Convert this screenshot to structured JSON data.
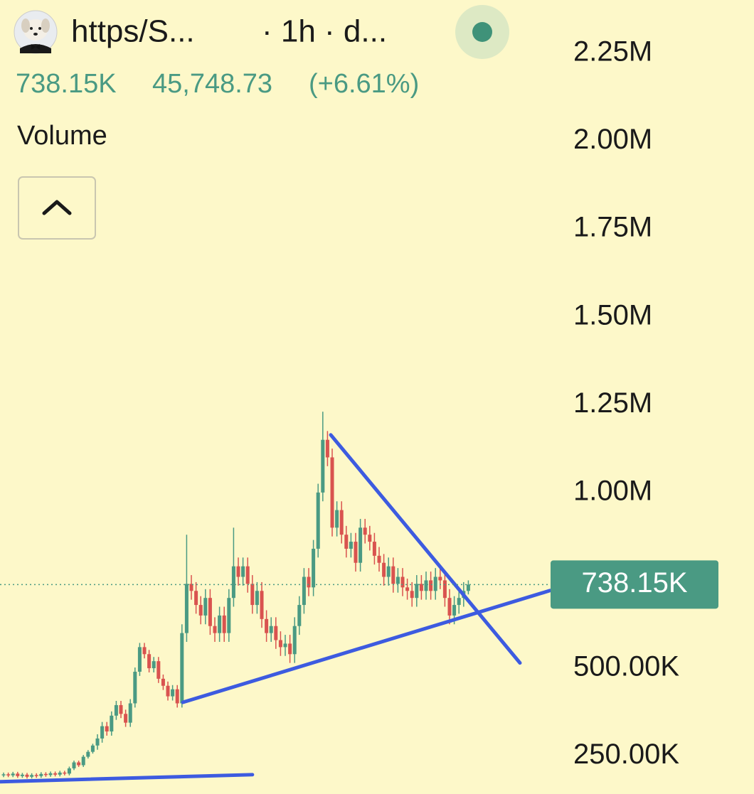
{
  "chart_data": {
    "type": "candlestick",
    "symbol": "https/S...",
    "interval": "· 1h · d...",
    "indicator": "Volume",
    "change": {
      "value": 45748.73,
      "label": "45,748.73"
    },
    "change_pct": {
      "value": 6.61,
      "label": "(+6.61%)"
    },
    "last_price": {
      "value": 738150,
      "label": "738.15K"
    },
    "up_color": "#4a9a83",
    "down_color": "#d9534f",
    "xlim": [
      -0.76,
      159.85
    ],
    "ylim": [
      142000,
      2401700
    ],
    "yticks": [
      {
        "value": 250000,
        "label": "250.00K"
      },
      {
        "value": 500000,
        "label": "500.00K"
      },
      {
        "value": 1000000,
        "label": "1.00M"
      },
      {
        "value": 1250000,
        "label": "1.25M"
      },
      {
        "value": 1500000,
        "label": "1.50M"
      },
      {
        "value": 1750000,
        "label": "1.75M"
      },
      {
        "value": 2000000,
        "label": "2.00M"
      },
      {
        "value": 2250000,
        "label": "2.25M"
      }
    ],
    "open": [
      195000,
      198000,
      195000,
      200000,
      193000,
      197000,
      191000,
      196000,
      193000,
      199000,
      196000,
      201000,
      197000,
      203000,
      200000,
      215000,
      232000,
      224000,
      248000,
      262000,
      280000,
      300000,
      335000,
      320000,
      365000,
      395000,
      370000,
      345000,
      400000,
      490000,
      560000,
      540000,
      500000,
      520000,
      470000,
      450000,
      420000,
      440000,
      400000,
      600000,
      740000,
      720000,
      680000,
      650000,
      700000,
      620000,
      600000,
      650000,
      600000,
      700000,
      790000,
      760000,
      790000,
      740000,
      680000,
      720000,
      640000,
      600000,
      620000,
      580000,
      560000,
      570000,
      540000,
      620000,
      680000,
      760000,
      730000,
      840000,
      1000000,
      1150000,
      1100000,
      900000,
      950000,
      880000,
      840000,
      860000,
      800000,
      900000,
      880000,
      860000,
      820000,
      800000,
      760000,
      790000,
      740000,
      760000,
      730000,
      720000,
      700000,
      740000,
      720000,
      750000,
      720000,
      760000,
      750000,
      700000,
      650000,
      680000,
      700000,
      720000
    ],
    "high": [
      203000,
      203000,
      205000,
      205000,
      202000,
      202000,
      201000,
      201000,
      204000,
      204000,
      206000,
      206000,
      208000,
      208000,
      220000,
      237000,
      237000,
      253000,
      267000,
      285000,
      312000,
      347000,
      347000,
      377000,
      407000,
      407000,
      382000,
      412000,
      502000,
      572000,
      572000,
      552000,
      532000,
      532000,
      482000,
      462000,
      452000,
      452000,
      625000,
      880000,
      765000,
      745000,
      705000,
      725000,
      725000,
      645000,
      675000,
      675000,
      725000,
      900000,
      815000,
      815000,
      815000,
      765000,
      745000,
      745000,
      665000,
      645000,
      645000,
      605000,
      595000,
      595000,
      645000,
      705000,
      785000,
      785000,
      865000,
      1025000,
      1230000,
      1175000,
      1125000,
      975000,
      975000,
      905000,
      885000,
      885000,
      925000,
      925000,
      905000,
      885000,
      845000,
      825000,
      815000,
      815000,
      785000,
      785000,
      755000,
      745000,
      765000,
      765000,
      775000,
      775000,
      785000,
      785000,
      775000,
      725000,
      705000,
      725000,
      745000,
      750000
    ],
    "low": [
      190000,
      190000,
      190000,
      188000,
      188000,
      186000,
      186000,
      188000,
      188000,
      191000,
      191000,
      192000,
      192000,
      195000,
      195000,
      210000,
      219000,
      219000,
      243000,
      257000,
      268000,
      288000,
      308000,
      308000,
      353000,
      358000,
      333000,
      333000,
      388000,
      478000,
      528000,
      488000,
      488000,
      458000,
      438000,
      408000,
      408000,
      388000,
      388000,
      575000,
      695000,
      655000,
      625000,
      625000,
      595000,
      575000,
      575000,
      575000,
      575000,
      675000,
      735000,
      735000,
      715000,
      655000,
      655000,
      615000,
      575000,
      575000,
      555000,
      535000,
      535000,
      515000,
      515000,
      595000,
      655000,
      705000,
      705000,
      815000,
      975000,
      1075000,
      875000,
      875000,
      855000,
      815000,
      815000,
      775000,
      775000,
      855000,
      835000,
      795000,
      775000,
      735000,
      735000,
      715000,
      715000,
      705000,
      695000,
      675000,
      675000,
      695000,
      695000,
      695000,
      695000,
      725000,
      675000,
      625000,
      625000,
      655000,
      675000,
      710000
    ],
    "close": [
      198000,
      195000,
      200000,
      193000,
      197000,
      191000,
      196000,
      193000,
      199000,
      196000,
      201000,
      197000,
      203000,
      200000,
      215000,
      232000,
      224000,
      248000,
      262000,
      280000,
      300000,
      335000,
      320000,
      365000,
      395000,
      370000,
      345000,
      400000,
      490000,
      560000,
      540000,
      500000,
      520000,
      470000,
      450000,
      420000,
      440000,
      400000,
      600000,
      740000,
      720000,
      680000,
      650000,
      700000,
      620000,
      600000,
      650000,
      600000,
      700000,
      790000,
      760000,
      790000,
      740000,
      680000,
      720000,
      640000,
      600000,
      620000,
      580000,
      560000,
      570000,
      540000,
      620000,
      680000,
      760000,
      730000,
      840000,
      1000000,
      1150000,
      1100000,
      900000,
      950000,
      880000,
      840000,
      860000,
      800000,
      900000,
      880000,
      860000,
      820000,
      800000,
      760000,
      790000,
      740000,
      760000,
      730000,
      720000,
      700000,
      740000,
      720000,
      750000,
      720000,
      760000,
      750000,
      700000,
      650000,
      680000,
      700000,
      720000,
      738150
    ],
    "trend_lines": [
      {
        "color": "#3d5be0",
        "x": [
          38.2,
          116.4
        ],
        "values": [
          403000,
          721000
        ]
      },
      {
        "color": "#3d5be0",
        "x": [
          69.7,
          110
        ],
        "values": [
          1164000,
          515000
        ]
      },
      {
        "color": "#3d5be0",
        "x": [
          -0.76,
          53
        ],
        "values": [
          177000,
          197000
        ]
      }
    ]
  }
}
